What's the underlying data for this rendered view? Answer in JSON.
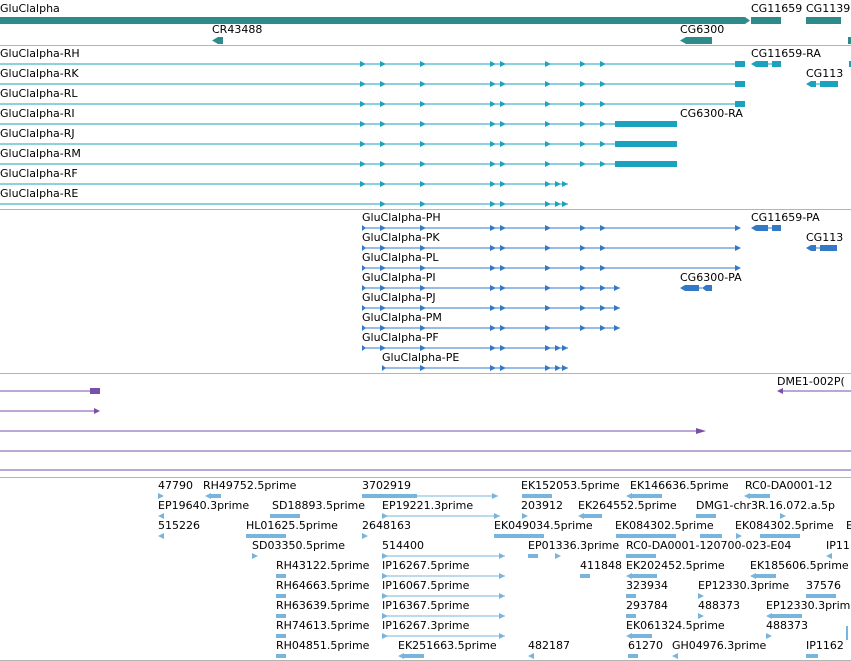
{
  "colors": {
    "gene": "#2e8b8b",
    "transcript": "#1ba2be",
    "protein": "#3478c8",
    "purple": "#7a4fa8",
    "est": "#78b4dc",
    "separator": "#b4b4b4"
  },
  "gene_track": {
    "features": [
      {
        "label": "GluClalpha"
      },
      {
        "label": "CR43488"
      },
      {
        "label": "CG6300"
      },
      {
        "label": "CG11659"
      },
      {
        "label": "CG1139"
      }
    ]
  },
  "transcript_track": {
    "rows": [
      {
        "label": "GluClalpha-RH"
      },
      {
        "label": "GluClalpha-RK"
      },
      {
        "label": "GluClalpha-RL"
      },
      {
        "label": "GluClalpha-RI"
      },
      {
        "label": "GluClalpha-RJ"
      },
      {
        "label": "GluClalpha-RM"
      },
      {
        "label": "GluClalpha-RF"
      },
      {
        "label": "GluClalpha-RE"
      }
    ],
    "extra": [
      {
        "label": "CG11659-RA"
      },
      {
        "label": "CG113"
      },
      {
        "label": "CG6300-RA"
      }
    ]
  },
  "protein_track": {
    "rows": [
      {
        "label": "GluClalpha-PH"
      },
      {
        "label": "GluClalpha-PK"
      },
      {
        "label": "GluClalpha-PL"
      },
      {
        "label": "GluClalpha-PI"
      },
      {
        "label": "GluClalpha-PJ"
      },
      {
        "label": "GluClalpha-PM"
      },
      {
        "label": "GluClalpha-PF"
      },
      {
        "label": "GluClalpha-PE"
      }
    ],
    "extra": [
      {
        "label": "CG11659-PA"
      },
      {
        "label": "CG113"
      },
      {
        "label": "CG6300-PA"
      }
    ]
  },
  "purple_track": {
    "label": "DME1-002P("
  },
  "est_track": {
    "labels": [
      "47790",
      "RH49752.5prime",
      "3702919",
      "EK152053.5prime",
      "EK146636.5prime",
      "RC0-DA0001-12",
      "EP19640.3prime",
      "SD18893.5prime",
      "EP19221.3prime",
      "203912",
      "EK264552.5prime",
      "DMG1-chr3R.16.072.a.5p",
      "515226",
      "HL01625.5prime",
      "2648163",
      "EK049034.5prime",
      "EK084302.5prime",
      "EK084302.5prime",
      "E",
      "SD03350.5prime",
      "514400",
      "EP01336.3prime",
      "RC0-DA0001-120700-023-E04",
      "IP11",
      "RH43122.5prime",
      "IP16267.5prime",
      "411848",
      "EK202452.5prime",
      "EK185606.5prime",
      "RH64663.5prime",
      "IP16067.5prime",
      "323934",
      "EP12330.3prime",
      "37576",
      "RH63639.5prime",
      "IP16367.5prime",
      "293784",
      "488373",
      "EP12330.3prime",
      "RH74613.5prime",
      "IP16267.3prime",
      "EK061324.5prime",
      "488373",
      "RH04851.5prime",
      "EK251663.5prime",
      "482187",
      "61270",
      "GH04976.3prime",
      "IP1162"
    ]
  }
}
